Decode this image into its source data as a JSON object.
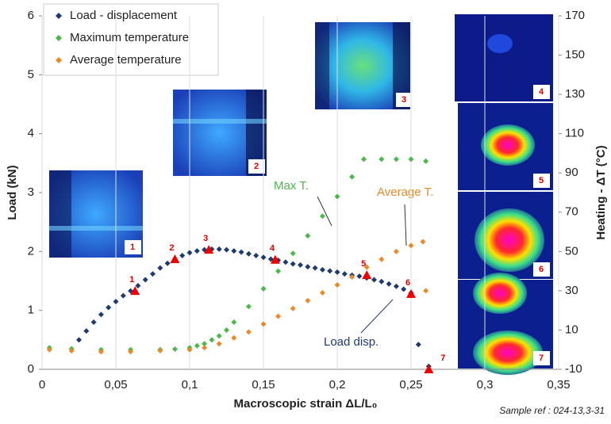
{
  "chart_data": {
    "type": "scatter",
    "xlabel": "Macroscopic strain ΔL/L₀",
    "ylabel": "Load (kN)",
    "y2label": "Heating - ΔT (°C)",
    "footnote": "Sample ref : 024-13,3-31",
    "xlim": [
      0,
      0.35
    ],
    "xticks": [
      0,
      {
        "value": 0.05,
        "label": "0,05"
      },
      {
        "value": 0.1,
        "label": "0,1"
      },
      {
        "value": 0.15,
        "label": "0,15"
      },
      {
        "value": 0.2,
        "label": "0,2"
      },
      {
        "value": 0.25,
        "label": "0,25"
      },
      {
        "value": 0.3,
        "label": "0,3"
      },
      {
        "value": 0.35,
        "label": "0,35"
      }
    ],
    "ylim": [
      0,
      6
    ],
    "yticks": [
      0,
      1,
      2,
      3,
      4,
      5,
      6
    ],
    "y2lim": [
      -10,
      170
    ],
    "y2ticks": [
      -10,
      10,
      30,
      50,
      70,
      90,
      110,
      130,
      150,
      170
    ],
    "grid": "x",
    "legend": "upper left",
    "series": [
      {
        "name": "Load - displacement",
        "color": "#1f3a6e",
        "axis": "y",
        "x": [
          0.025,
          0.03,
          0.035,
          0.04,
          0.045,
          0.05,
          0.055,
          0.06,
          0.065,
          0.07,
          0.075,
          0.08,
          0.085,
          0.09,
          0.095,
          0.1,
          0.105,
          0.11,
          0.115,
          0.12,
          0.125,
          0.13,
          0.135,
          0.14,
          0.145,
          0.15,
          0.155,
          0.16,
          0.165,
          0.17,
          0.175,
          0.18,
          0.185,
          0.19,
          0.195,
          0.2,
          0.205,
          0.21,
          0.215,
          0.22,
          0.225,
          0.23,
          0.235,
          0.24,
          0.245,
          0.25,
          0.255,
          0.262
        ],
        "values": [
          0.5,
          0.65,
          0.8,
          0.93,
          1.05,
          1.15,
          1.25,
          1.33,
          1.42,
          1.52,
          1.62,
          1.72,
          1.8,
          1.87,
          1.93,
          1.98,
          2.01,
          2.03,
          2.04,
          2.04,
          2.03,
          2.01,
          1.99,
          1.96,
          1.93,
          1.9,
          1.87,
          1.85,
          1.82,
          1.79,
          1.77,
          1.74,
          1.72,
          1.69,
          1.67,
          1.65,
          1.62,
          1.6,
          1.58,
          1.55,
          1.52,
          1.49,
          1.45,
          1.41,
          1.36,
          1.3,
          0.42,
          0.05
        ]
      },
      {
        "name": "Maximum temperature",
        "color": "#4cb84c",
        "axis": "y2",
        "x": [
          0.005,
          0.02,
          0.04,
          0.06,
          0.08,
          0.09,
          0.1,
          0.105,
          0.11,
          0.115,
          0.12,
          0.125,
          0.13,
          0.14,
          0.15,
          0.16,
          0.17,
          0.18,
          0.19,
          0.2,
          0.21,
          0.218,
          0.23,
          0.24,
          0.25,
          0.26
        ],
        "values": [
          1,
          0.5,
          0,
          0,
          0,
          0.3,
          1,
          2,
          3,
          5,
          7,
          10,
          14,
          22,
          31,
          40,
          49,
          58,
          68,
          78,
          88,
          97,
          97,
          97,
          97,
          96
        ]
      },
      {
        "name": "Average temperature",
        "color": "#e8892a",
        "axis": "y2",
        "x": [
          0.005,
          0.02,
          0.04,
          0.06,
          0.08,
          0.1,
          0.11,
          0.12,
          0.13,
          0.14,
          0.15,
          0.16,
          0.17,
          0.18,
          0.19,
          0.2,
          0.21,
          0.22,
          0.23,
          0.24,
          0.25,
          0.258,
          0.26
        ],
        "values": [
          0,
          -0.5,
          -1,
          -1,
          -0.5,
          0,
          1,
          3,
          6,
          9,
          13,
          17,
          21,
          25,
          29,
          33,
          37,
          42,
          46,
          50,
          53,
          55,
          30
        ]
      }
    ],
    "markers": [
      {
        "label": "1",
        "x": 0.063,
        "y": 1.33
      },
      {
        "label": "2",
        "x": 0.09,
        "y": 1.87
      },
      {
        "label": "3",
        "x": 0.113,
        "y": 2.03
      },
      {
        "label": "4",
        "x": 0.158,
        "y": 1.86
      },
      {
        "label": "5",
        "x": 0.22,
        "y": 1.6
      },
      {
        "label": "6",
        "x": 0.25,
        "y": 1.28
      },
      {
        "label": "7",
        "x": 0.262,
        "y": 0
      }
    ],
    "annotations": [
      "Max T.",
      "Average T.",
      "Load disp."
    ],
    "thermal_images": [
      "1",
      "2",
      "3",
      "4",
      "5",
      "6",
      "7"
    ]
  }
}
